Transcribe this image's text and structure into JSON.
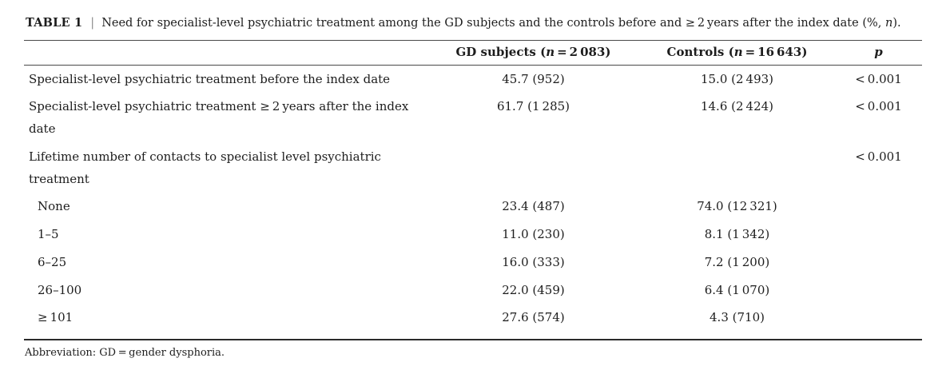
{
  "caption": {
    "label": "TABLE 1",
    "separator": "|",
    "text_pre": "Need for specialist-level psychiatric treatment among the GD subjects and the controls before and ≥ 2 years after the index date (%, ",
    "text_italic": "n",
    "text_post": ")."
  },
  "header": {
    "gd": {
      "pre": "GD subjects (",
      "var": "n",
      "post": " = 2 083)"
    },
    "controls": {
      "pre": "Controls (",
      "var": "n",
      "post": " = 16 643)"
    },
    "p": "p"
  },
  "rows": [
    {
      "label": "Specialist-level psychiatric treatment before the index date",
      "gd": "45.7 (952)",
      "controls": "15.0 (2 493)",
      "p": "< 0.001"
    },
    {
      "label": "Specialist-level psychiatric treatment ≥ 2 years after the index date",
      "gd": "61.7 (1 285)",
      "controls": "14.6 (2 424)",
      "p": "< 0.001"
    },
    {
      "label": "Lifetime number of contacts to specialist level psychiatric treatment",
      "gd": "",
      "controls": "",
      "p": "< 0.001"
    },
    {
      "label": "None",
      "gd": "23.4 (487)",
      "controls": "74.0 (12 321)",
      "p": ""
    },
    {
      "label": "1–5",
      "gd": "11.0 (230)",
      "controls": "8.1 (1 342)",
      "p": ""
    },
    {
      "label": "6–25",
      "gd": "16.0 (333)",
      "controls": "7.2 (1 200)",
      "p": ""
    },
    {
      "label": "26–100",
      "gd": "22.0 (459)",
      "controls": "6.4 (1 070)",
      "p": ""
    },
    {
      "label": "≥ 101",
      "gd": "27.6 (574)",
      "controls": "4.3 (710)",
      "p": ""
    }
  ],
  "footnote": "Abbreviation: GD = gender dysphoria."
}
